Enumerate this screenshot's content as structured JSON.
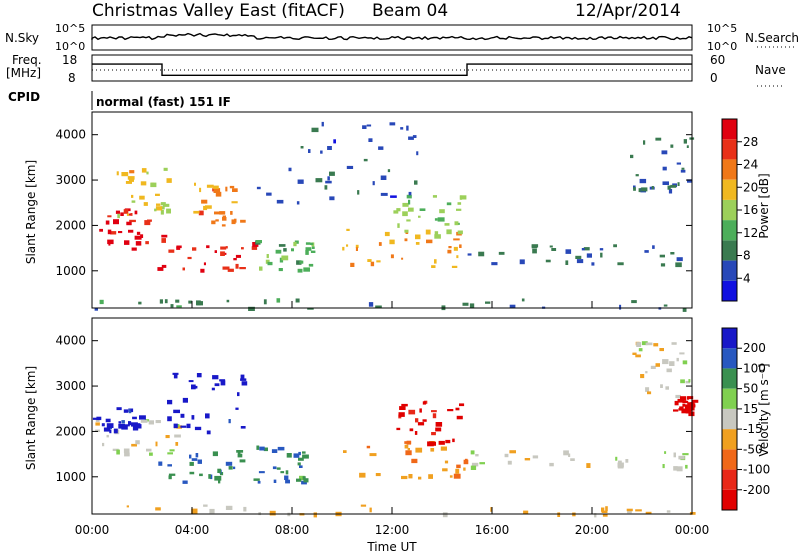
{
  "header": {
    "station": "Christmas Valley East (fitACF)",
    "beam": "Beam 04",
    "date": "12/Apr/2014"
  },
  "strips": {
    "nsky_label": "N.Sky",
    "nsearch_label": "N.Search",
    "nsky_ticks": [
      "10^5",
      "10^0"
    ],
    "freq_label_1": "Freq.",
    "freq_label_2": "[MHz]",
    "freq_ticks": [
      "18",
      "8"
    ],
    "nave_label": "Nave",
    "nave_ticks": [
      "60",
      "0"
    ],
    "cpid_label": "CPID",
    "cpid_text": "normal (fast) 151 IF"
  },
  "axes": {
    "ylabel": "Slant Range [km]",
    "yticks": [
      "4000",
      "3000",
      "2000",
      "1000"
    ],
    "xticks": [
      "00:00",
      "04:00",
      "08:00",
      "12:00",
      "16:00",
      "20:00",
      "00:00"
    ],
    "xlabel": "Time UT"
  },
  "power_colorbar": {
    "label": "Power [dB]",
    "ticks": [
      "28",
      "24",
      "20",
      "16",
      "12",
      "8",
      "4"
    ],
    "colors": [
      "#1010e0",
      "#2848b8",
      "#3a7a50",
      "#4cae5a",
      "#9cd05a",
      "#f0b820",
      "#f07818",
      "#e83018",
      "#e00010"
    ]
  },
  "velocity_colorbar": {
    "label": "Velocity [m s⁻¹]",
    "ticks": [
      "200",
      "100",
      "50",
      "15",
      "-15",
      "-50",
      "-100",
      "-200"
    ],
    "colors": [
      "#1818c8",
      "#2858c0",
      "#3a9050",
      "#80d050",
      "#c8c8c0",
      "#f0a020",
      "#f06818",
      "#e82818",
      "#e00000"
    ]
  },
  "chart_data": {
    "type": "heatmap",
    "x_range_hours": [
      0,
      24
    ],
    "y_range_km": [
      180,
      4500
    ],
    "panels": [
      {
        "name": "power",
        "unit": "dB",
        "clim": [
          0,
          30
        ],
        "regions": [
          {
            "t": [
              0,
              2.6
            ],
            "r": [
              1500,
              2400
            ],
            "v": 27
          },
          {
            "t": [
              0.8,
              3.0
            ],
            "r": [
              2100,
              3300
            ],
            "v": 18
          },
          {
            "t": [
              2.6,
              6.5
            ],
            "r": [
              1000,
              1800
            ],
            "v": 26
          },
          {
            "t": [
              4.0,
              6.0
            ],
            "r": [
              2000,
              3000
            ],
            "v": 21
          },
          {
            "t": [
              6.5,
              8.8
            ],
            "r": [
              1000,
              1700
            ],
            "v": 12
          },
          {
            "t": [
              10.0,
              15.0
            ],
            "r": [
              1100,
              2000
            ],
            "v": 20
          },
          {
            "t": [
              12.0,
              14.8
            ],
            "r": [
              1800,
              2700
            ],
            "v": 14
          },
          {
            "t": [
              15.0,
              24.0
            ],
            "r": [
              1150,
              1600
            ],
            "v": 7
          },
          {
            "t": [
              21.5,
              24.0
            ],
            "r": [
              2800,
              4000
            ],
            "v": 6
          },
          {
            "t": [
              6.5,
              13.0
            ],
            "r": [
              2500,
              4500
            ],
            "v": 5
          },
          {
            "t": [
              0,
              24
            ],
            "r": [
              180,
              400
            ],
            "v": 8
          }
        ]
      },
      {
        "name": "velocity",
        "unit": "m s-1",
        "clim": [
          -200,
          200
        ],
        "regions": [
          {
            "t": [
              0,
              3.5
            ],
            "r": [
              1500,
              2300
            ],
            "v": 0
          },
          {
            "t": [
              0,
              2.0
            ],
            "r": [
              2000,
              2600
            ],
            "v": 180
          },
          {
            "t": [
              2.6,
              6.5
            ],
            "r": [
              900,
              1600
            ],
            "v": 110
          },
          {
            "t": [
              3.0,
              6.0
            ],
            "r": [
              2000,
              3500
            ],
            "v": 190
          },
          {
            "t": [
              6.5,
              8.5
            ],
            "r": [
              900,
              1700
            ],
            "v": 100
          },
          {
            "t": [
              10.0,
              15.0
            ],
            "r": [
              1000,
              1800
            ],
            "v": -60
          },
          {
            "t": [
              12.0,
              14.8
            ],
            "r": [
              1700,
              2700
            ],
            "v": -180
          },
          {
            "t": [
              15.0,
              24.0
            ],
            "r": [
              1200,
              1600
            ],
            "v": 0
          },
          {
            "t": [
              21.5,
              24.0
            ],
            "r": [
              2800,
              4000
            ],
            "v": 0
          },
          {
            "t": [
              23.2,
              24.0
            ],
            "r": [
              2400,
              2800
            ],
            "v": -190
          },
          {
            "t": [
              0,
              24
            ],
            "r": [
              180,
              400
            ],
            "v": -30
          }
        ]
      }
    ],
    "freq_mhz": [
      {
        "t": [
          0,
          2.8
        ],
        "v": 14.5
      },
      {
        "t": [
          2.8,
          15.0
        ],
        "v": 10.2
      },
      {
        "t": [
          15.0,
          24.0
        ],
        "v": 14.5
      }
    ]
  }
}
